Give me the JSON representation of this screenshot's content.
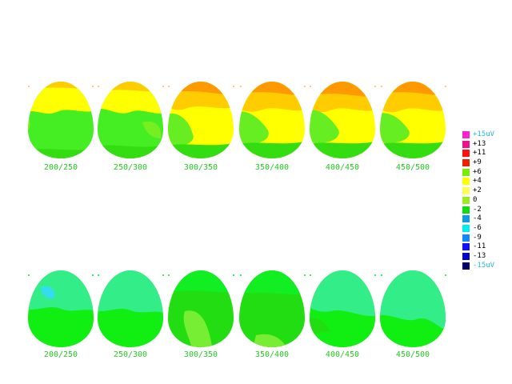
{
  "top_row": {
    "maps": [
      {
        "label": "200/250",
        "color": "#44ee22"
      },
      {
        "label": "250/300",
        "color": "#44ee22"
      },
      {
        "label": "300/350",
        "color": "#ffff00"
      },
      {
        "label": "350/400",
        "color": "#ffff00"
      },
      {
        "label": "400/450",
        "color": "#ffff00"
      },
      {
        "label": "450/500",
        "color": "#ffff00"
      }
    ]
  },
  "bottom_row": {
    "maps": [
      {
        "label": "200/250",
        "color": "#11ee11"
      },
      {
        "label": "250/300",
        "color": "#11ee11"
      },
      {
        "label": "300/350",
        "color": "#22dd11"
      },
      {
        "label": "350/400",
        "color": "#22dd11"
      },
      {
        "label": "400/450",
        "color": "#11ee11"
      },
      {
        "label": "450/500",
        "color": "#11ee11"
      }
    ]
  },
  "legend": {
    "items": [
      {
        "label": "+15uV",
        "color": "#ff22cc",
        "label_color": "cyan"
      },
      {
        "label": "+13",
        "color": "#ee1188"
      },
      {
        "label": "+11",
        "color": "#ff1111"
      },
      {
        "label": "+9",
        "color": "#ee2200"
      },
      {
        "label": "+6",
        "color": "#77ee00"
      },
      {
        "label": "+4",
        "color": "#ffff00"
      },
      {
        "label": "+2",
        "color": "#ffff55"
      },
      {
        "label": "0",
        "color": "#99ee22"
      },
      {
        "label": "-2",
        "color": "#11dd11"
      },
      {
        "label": "-4",
        "color": "#1199ee"
      },
      {
        "label": "-6",
        "color": "#00eeee"
      },
      {
        "label": "-9",
        "color": "#1188ff"
      },
      {
        "label": "-11",
        "color": "#1111ff"
      },
      {
        "label": "-13",
        "color": "#0000cc"
      },
      {
        "label": "-15uV",
        "color": "#000066",
        "label_color": "cyan"
      }
    ]
  }
}
